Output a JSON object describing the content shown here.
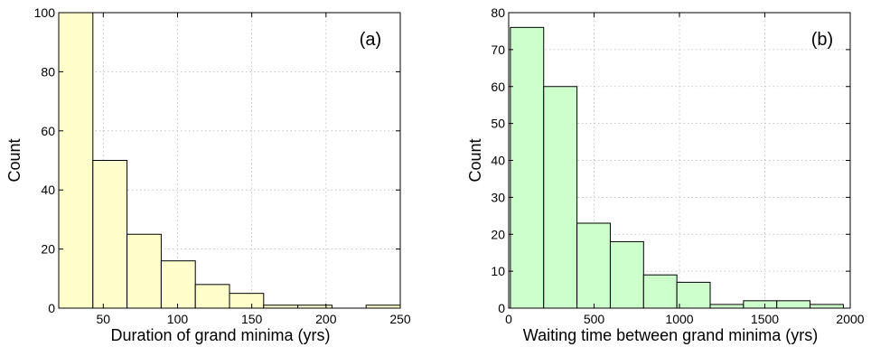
{
  "colors": {
    "panel_a_fill": "#ffffcc",
    "panel_b_fill": "#ccffcc",
    "axis": "#000000",
    "grid": "#b8b8b8"
  },
  "chart_data": [
    {
      "type": "bar",
      "panel_label": "(a)",
      "xlabel": "Duration of grand minima (yrs)",
      "ylabel": "Count",
      "xlim": [
        20,
        250
      ],
      "ylim": [
        0,
        100
      ],
      "xticks": [
        50,
        100,
        150,
        200,
        250
      ],
      "yticks": [
        0,
        20,
        40,
        60,
        80,
        100
      ],
      "grid": true,
      "bin_edges": [
        20,
        43,
        66,
        89,
        112,
        135,
        158,
        181,
        204,
        227,
        250
      ],
      "values": [
        100,
        50,
        25,
        16,
        8,
        5,
        1,
        1,
        0,
        1
      ]
    },
    {
      "type": "bar",
      "panel_label": "(b)",
      "xlabel": "Waiting time between grand minima (yrs)",
      "ylabel": "Count",
      "xlim": [
        0,
        2000
      ],
      "ylim": [
        0,
        80
      ],
      "xticks": [
        0,
        500,
        1000,
        1500,
        2000
      ],
      "yticks": [
        0,
        10,
        20,
        30,
        40,
        50,
        60,
        70,
        80
      ],
      "grid": true,
      "bin_edges": [
        10,
        205,
        400,
        595,
        790,
        985,
        1180,
        1375,
        1570,
        1765,
        1960
      ],
      "values": [
        76,
        60,
        23,
        18,
        9,
        7,
        1,
        2,
        2,
        1
      ]
    }
  ]
}
